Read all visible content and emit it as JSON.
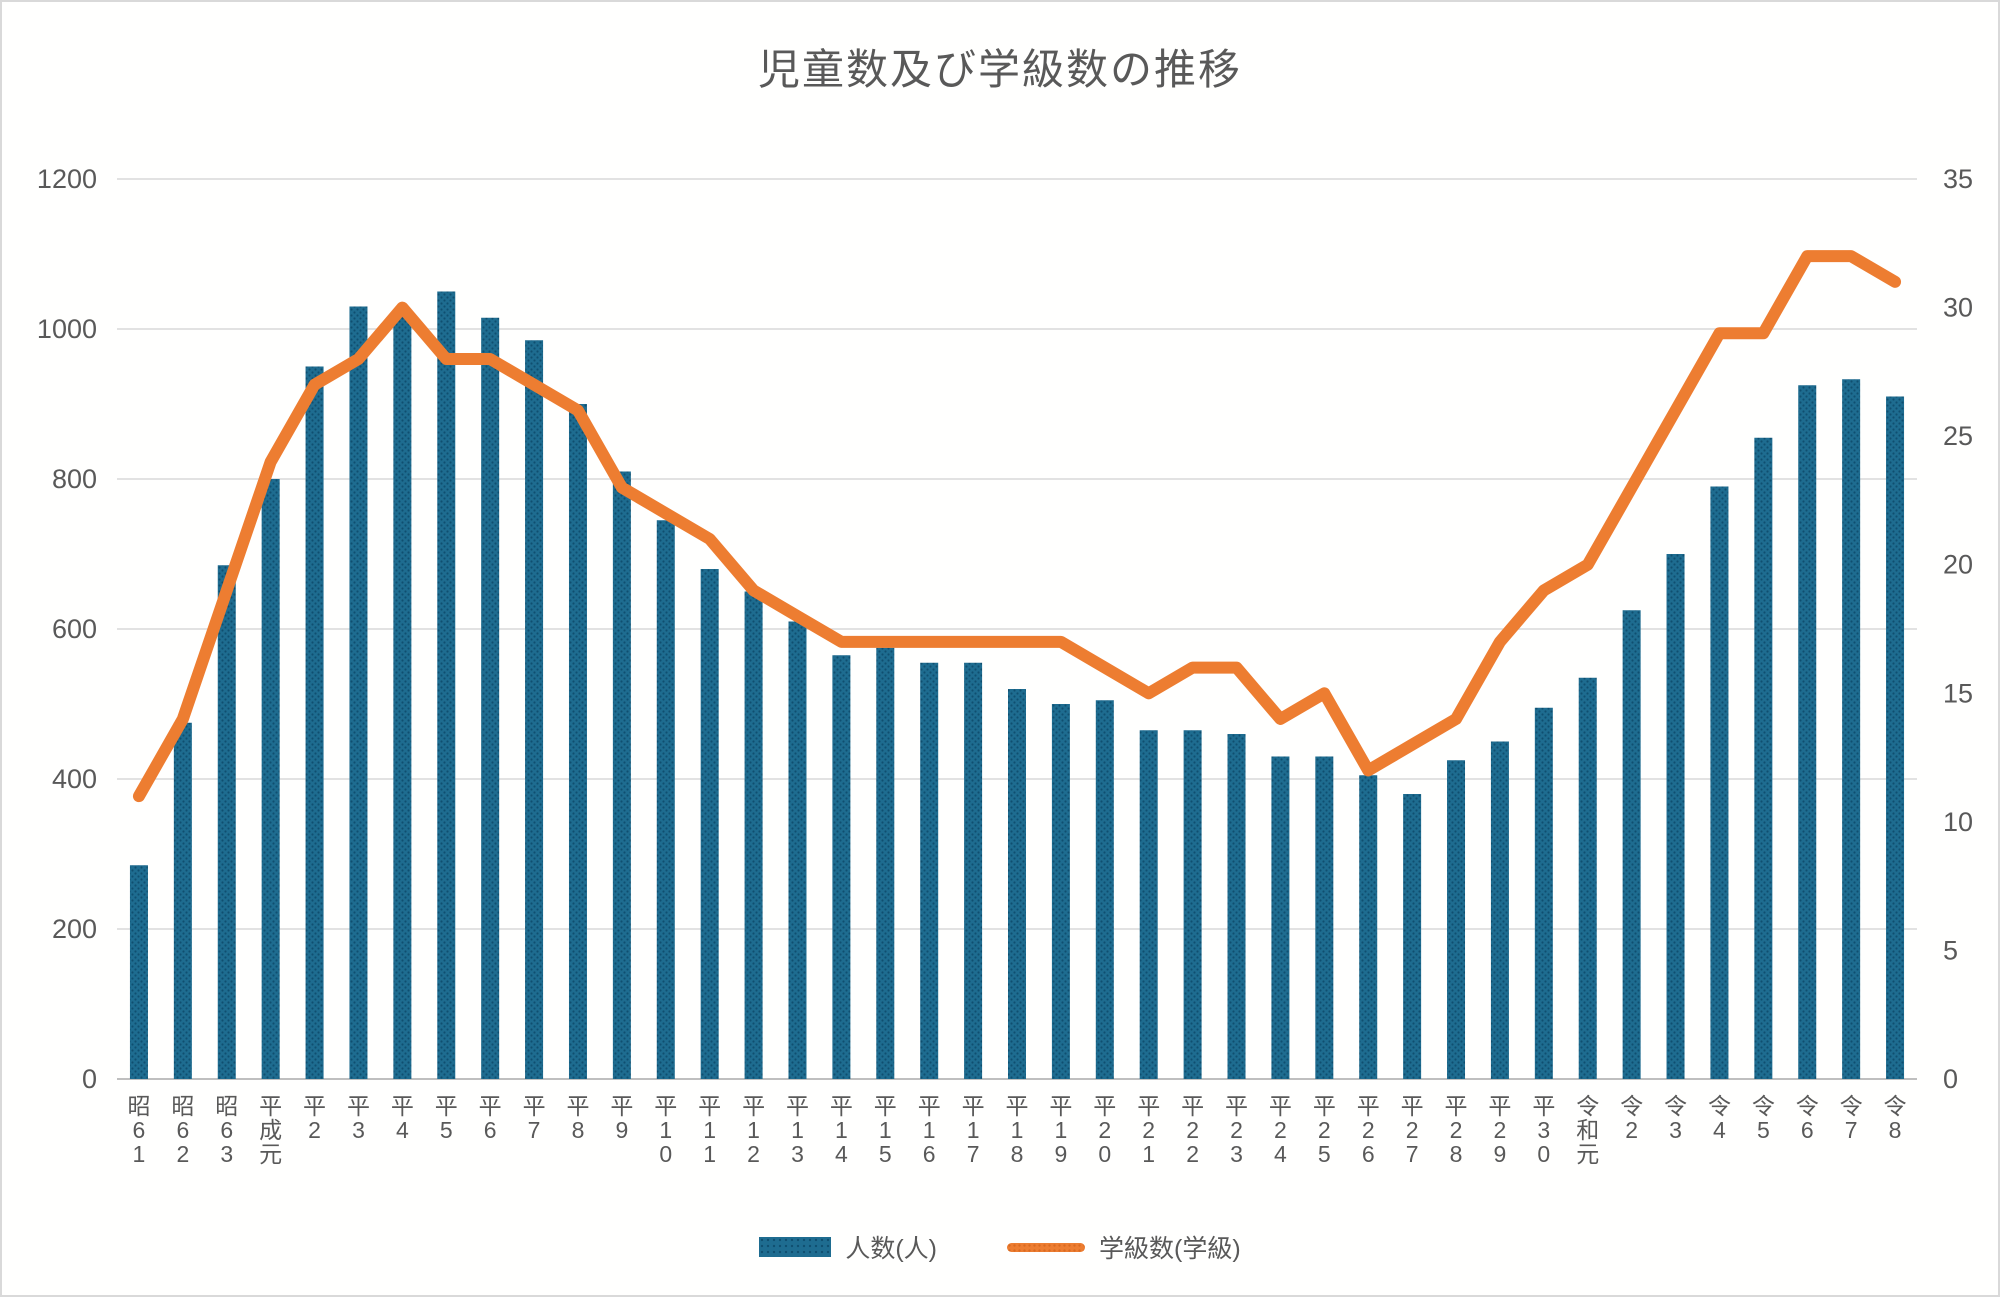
{
  "colors": {
    "bar": "#1e6c90",
    "bar_dot": "#0f4f70",
    "line": "#ed7d31",
    "grid": "#d9d9d9",
    "axis_zero": "#bfbfbf",
    "text": "#595959",
    "background": "#fffffe"
  },
  "chart_data": {
    "type": "bar",
    "title": "児童数及び学級数の推移",
    "categories": [
      "昭61",
      "昭62",
      "昭63",
      "平成元",
      "平2",
      "平3",
      "平4",
      "平5",
      "平6",
      "平7",
      "平8",
      "平9",
      "平10",
      "平11",
      "平12",
      "平13",
      "平14",
      "平15",
      "平16",
      "平17",
      "平18",
      "平19",
      "平20",
      "平21",
      "平22",
      "平23",
      "平24",
      "平25",
      "平26",
      "平27",
      "平28",
      "平29",
      "平30",
      "令和元",
      "令2",
      "令3",
      "令4",
      "令5",
      "令6",
      "令7",
      "令8"
    ],
    "series": [
      {
        "name": "人数(人)",
        "type": "bar",
        "axis": "left",
        "values": [
          285,
          475,
          685,
          800,
          950,
          1030,
          1020,
          1050,
          1015,
          985,
          900,
          810,
          745,
          680,
          650,
          610,
          565,
          575,
          555,
          555,
          520,
          500,
          505,
          465,
          465,
          460,
          430,
          430,
          405,
          380,
          425,
          450,
          495,
          535,
          625,
          700,
          790,
          855,
          925,
          933,
          910
        ]
      },
      {
        "name": "学級数(学級)",
        "type": "line",
        "axis": "right",
        "values": [
          11,
          14,
          19,
          24,
          27,
          28,
          30,
          28,
          28,
          27,
          26,
          23,
          22,
          21,
          19,
          18,
          17,
          17,
          17,
          17,
          17,
          17,
          16,
          15,
          16,
          16,
          14,
          15,
          12,
          13,
          14,
          17,
          19,
          20,
          23,
          26,
          29,
          29,
          32,
          32,
          31
        ]
      }
    ],
    "left_axis": {
      "min": 0,
      "max": 1200,
      "step": 200,
      "ticks": [
        "0",
        "200",
        "400",
        "600",
        "800",
        "1000",
        "1200"
      ]
    },
    "right_axis": {
      "min": 0,
      "max": 35,
      "step": 5,
      "ticks": [
        "0",
        "5",
        "10",
        "15",
        "20",
        "25",
        "30",
        "35"
      ]
    },
    "grid": true,
    "legend_position": "bottom",
    "x_label_orientation": "vertical-stacked"
  }
}
